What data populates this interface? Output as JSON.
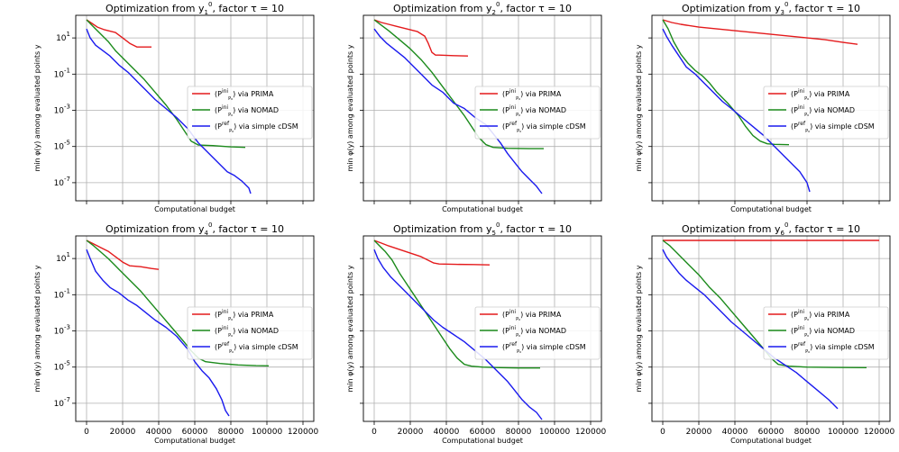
{
  "figure": {
    "layout": "2x3 grid"
  },
  "colors": {
    "prima": "#e41a1c",
    "nomad": "#1b8a1b",
    "cdsm": "#1a1aee",
    "grid": "#b0b0b0"
  },
  "chart_data": [
    {
      "type": "line",
      "title": "Optimization from y₁⁰, factor τ = 10",
      "xlabel": "Computational budget",
      "ylabel": "min φ(y) among evaluated points y",
      "y_scale": "log",
      "xlim": [
        -6000,
        126000
      ],
      "ylim_log10": [
        -8,
        2.25
      ],
      "x_ticks": [
        0,
        20000,
        40000,
        60000,
        80000,
        100000,
        120000
      ],
      "x_tick_labels_visible": false,
      "y_ticks": [
        "10^1",
        "10^-1",
        "10^-3",
        "10^-5",
        "10^-7"
      ],
      "y_tick_labels_visible": true,
      "grid": true,
      "legend": {
        "placement": "center-right",
        "entries": [
          "PRIMA",
          "NOMAD",
          "cDSM"
        ]
      },
      "series": [
        {
          "key": "prima",
          "name": "(P_P0^ini) via PRIMA",
          "x": [
            0,
            3000,
            6000,
            10000,
            16000,
            20000,
            24000,
            28000,
            36000
          ],
          "log10_y": [
            2.0,
            1.8,
            1.6,
            1.45,
            1.3,
            1.0,
            0.7,
            0.5,
            0.5
          ]
        },
        {
          "key": "nomad",
          "name": "(P_P0^ini) via NOMAD",
          "x": [
            0,
            4000,
            8000,
            12000,
            16000,
            20000,
            26000,
            32000,
            38000,
            44000,
            50000,
            54000,
            58000,
            62000,
            70000,
            80000,
            88000
          ],
          "log10_y": [
            2.0,
            1.6,
            1.2,
            0.8,
            0.3,
            -0.1,
            -0.7,
            -1.3,
            -2.0,
            -2.7,
            -3.5,
            -4.1,
            -4.7,
            -4.92,
            -4.95,
            -5.02,
            -5.05
          ]
        },
        {
          "key": "cdsm",
          "name": "(P_P0^ref) via simple cDSM",
          "x": [
            0,
            2000,
            5000,
            9000,
            13000,
            18000,
            23000,
            28000,
            33000,
            38000,
            44000,
            50000,
            56000,
            62000,
            66000,
            70000,
            74000,
            78000,
            82000,
            86000,
            90000,
            91000
          ],
          "log10_y": [
            1.5,
            1.0,
            0.6,
            0.3,
            0.0,
            -0.5,
            -0.9,
            -1.4,
            -1.9,
            -2.4,
            -2.9,
            -3.4,
            -4.0,
            -4.8,
            -5.2,
            -5.6,
            -6.0,
            -6.4,
            -6.6,
            -6.9,
            -7.3,
            -7.6
          ]
        }
      ]
    },
    {
      "type": "line",
      "title": "Optimization from y₂⁰, factor τ = 10",
      "xlabel": "Computational budget",
      "ylabel": "min φ(y) among evaluated points y",
      "y_scale": "log",
      "xlim": [
        -6000,
        126000
      ],
      "ylim_log10": [
        -8,
        2.25
      ],
      "x_ticks": [
        0,
        20000,
        40000,
        60000,
        80000,
        100000,
        120000
      ],
      "x_tick_labels_visible": false,
      "y_ticks": [
        "10^1",
        "10^-1",
        "10^-3",
        "10^-5",
        "10^-7"
      ],
      "y_tick_labels_visible": false,
      "grid": true,
      "legend": {
        "placement": "center-right",
        "entries": [
          "PRIMA",
          "NOMAD",
          "cDSM"
        ]
      },
      "series": [
        {
          "key": "prima",
          "name": "(P_P0^ini) via PRIMA",
          "x": [
            0,
            4000,
            8000,
            12000,
            16000,
            20000,
            24000,
            28000,
            30000,
            32000,
            34000,
            36000,
            44000,
            52000
          ],
          "log10_y": [
            2.0,
            1.85,
            1.75,
            1.65,
            1.55,
            1.45,
            1.35,
            1.1,
            0.7,
            0.2,
            0.05,
            0.05,
            0.02,
            0.0
          ]
        },
        {
          "key": "nomad",
          "name": "(P_P0^ini) via NOMAD",
          "x": [
            0,
            4000,
            8000,
            14000,
            20000,
            26000,
            32000,
            38000,
            44000,
            50000,
            54000,
            58000,
            62000,
            66000,
            74000,
            86000,
            94000
          ],
          "log10_y": [
            2.0,
            1.7,
            1.4,
            0.9,
            0.4,
            -0.2,
            -0.9,
            -1.7,
            -2.5,
            -3.3,
            -3.9,
            -4.5,
            -4.9,
            -5.05,
            -5.1,
            -5.12,
            -5.12
          ]
        },
        {
          "key": "cdsm",
          "name": "(P_P0^ref) via simple cDSM",
          "x": [
            0,
            3000,
            7000,
            12000,
            17000,
            22000,
            27000,
            32000,
            38000,
            44000,
            50000,
            56000,
            62000,
            66000,
            70000,
            74000,
            78000,
            82000,
            86000,
            90000,
            93000
          ],
          "log10_y": [
            1.5,
            1.1,
            0.7,
            0.3,
            -0.1,
            -0.6,
            -1.1,
            -1.6,
            -2.0,
            -2.6,
            -2.9,
            -3.4,
            -3.8,
            -4.3,
            -4.8,
            -5.4,
            -5.9,
            -6.4,
            -6.8,
            -7.2,
            -7.6
          ]
        }
      ]
    },
    {
      "type": "line",
      "title": "Optimization from y₃⁰, factor τ = 10",
      "xlabel": "Computational budget",
      "ylabel": "min φ(y) among evaluated points y",
      "y_scale": "log",
      "xlim": [
        -6000,
        126000
      ],
      "ylim_log10": [
        -8,
        2.25
      ],
      "x_ticks": [
        0,
        20000,
        40000,
        60000,
        80000,
        100000,
        120000
      ],
      "x_tick_labels_visible": false,
      "y_ticks": [
        "10^1",
        "10^-1",
        "10^-3",
        "10^-5",
        "10^-7"
      ],
      "y_tick_labels_visible": false,
      "grid": true,
      "legend": {
        "placement": "center-right",
        "entries": [
          "PRIMA",
          "NOMAD",
          "cDSM"
        ]
      },
      "series": [
        {
          "key": "prima",
          "name": "(P_P0^ini) via PRIMA",
          "x": [
            0,
            5000,
            10000,
            20000,
            30000,
            40000,
            50000,
            60000,
            70000,
            80000,
            90000,
            100000,
            108000
          ],
          "log10_y": [
            2.0,
            1.85,
            1.75,
            1.6,
            1.5,
            1.4,
            1.3,
            1.2,
            1.1,
            1.0,
            0.9,
            0.75,
            0.65
          ]
        },
        {
          "key": "nomad",
          "name": "(P_P0^ini) via NOMAD",
          "x": [
            0,
            3000,
            6000,
            10000,
            14000,
            18000,
            22000,
            26000,
            30000,
            36000,
            42000,
            46000,
            50000,
            54000,
            58000,
            62000,
            70000
          ],
          "log10_y": [
            2.0,
            1.5,
            0.8,
            0.1,
            -0.4,
            -0.8,
            -1.1,
            -1.5,
            -2.0,
            -2.6,
            -3.3,
            -3.9,
            -4.4,
            -4.7,
            -4.85,
            -4.88,
            -4.9
          ]
        },
        {
          "key": "cdsm",
          "name": "(P_P0^ref) via simple cDSM",
          "x": [
            0,
            2000,
            5000,
            9000,
            13000,
            18000,
            23000,
            28000,
            33000,
            38000,
            44000,
            50000,
            56000,
            60000,
            64000,
            68000,
            72000,
            76000,
            80000,
            81500
          ],
          "log10_y": [
            1.5,
            1.1,
            0.6,
            0.0,
            -0.6,
            -1.0,
            -1.5,
            -2.0,
            -2.5,
            -2.9,
            -3.4,
            -3.9,
            -4.4,
            -4.8,
            -5.2,
            -5.6,
            -6.0,
            -6.4,
            -7.0,
            -7.5
          ]
        }
      ]
    },
    {
      "type": "line",
      "title": "Optimization from y₄⁰, factor τ = 10",
      "xlabel": "Computational budget",
      "ylabel": "min φ(y) among evaluated points y",
      "y_scale": "log",
      "xlim": [
        -6000,
        126000
      ],
      "ylim_log10": [
        -8,
        2.25
      ],
      "x_ticks": [
        0,
        20000,
        40000,
        60000,
        80000,
        100000,
        120000
      ],
      "x_tick_labels_visible": true,
      "y_ticks": [
        "10^1",
        "10^-1",
        "10^-3",
        "10^-5",
        "10^-7"
      ],
      "y_tick_labels_visible": true,
      "grid": true,
      "legend": {
        "placement": "center-right",
        "entries": [
          "PRIMA",
          "NOMAD",
          "cDSM"
        ]
      },
      "series": [
        {
          "key": "prima",
          "name": "(P_P0^ini) via PRIMA",
          "x": [
            0,
            4000,
            8000,
            12000,
            16000,
            20000,
            24000,
            30000,
            36000,
            40000
          ],
          "log10_y": [
            2.0,
            1.8,
            1.6,
            1.4,
            1.1,
            0.8,
            0.6,
            0.55,
            0.45,
            0.4
          ]
        },
        {
          "key": "nomad",
          "name": "(P_P0^ini) via NOMAD",
          "x": [
            0,
            4000,
            8000,
            12000,
            18000,
            24000,
            30000,
            36000,
            42000,
            48000,
            54000,
            58000,
            62000,
            66000,
            74000,
            84000,
            94000,
            101000
          ],
          "log10_y": [
            2.0,
            1.7,
            1.35,
            1.0,
            0.4,
            -0.2,
            -0.8,
            -1.5,
            -2.2,
            -2.9,
            -3.6,
            -4.1,
            -4.5,
            -4.7,
            -4.8,
            -4.88,
            -4.92,
            -4.93
          ]
        },
        {
          "key": "cdsm",
          "name": "(P_P0^ref) via simple cDSM",
          "x": [
            0,
            2000,
            5000,
            9000,
            13000,
            18000,
            23000,
            28000,
            33000,
            38000,
            44000,
            50000,
            56000,
            60000,
            64000,
            68000,
            72000,
            75000,
            77000,
            79000
          ],
          "log10_y": [
            1.5,
            1.0,
            0.3,
            -0.2,
            -0.6,
            -0.9,
            -1.3,
            -1.6,
            -2.0,
            -2.4,
            -2.8,
            -3.3,
            -4.0,
            -4.7,
            -5.2,
            -5.6,
            -6.2,
            -6.8,
            -7.4,
            -7.7
          ]
        }
      ]
    },
    {
      "type": "line",
      "title": "Optimization from y₅⁰, factor τ = 10",
      "xlabel": "Computational budget",
      "ylabel": "min φ(y) among evaluated points y",
      "y_scale": "log",
      "xlim": [
        -6000,
        126000
      ],
      "ylim_log10": [
        -8,
        2.25
      ],
      "x_ticks": [
        0,
        20000,
        40000,
        60000,
        80000,
        100000,
        120000
      ],
      "x_tick_labels_visible": true,
      "y_ticks": [
        "10^1",
        "10^-1",
        "10^-3",
        "10^-5",
        "10^-7"
      ],
      "y_tick_labels_visible": false,
      "grid": true,
      "legend": {
        "placement": "center-right",
        "entries": [
          "PRIMA",
          "NOMAD",
          "cDSM"
        ]
      },
      "series": [
        {
          "key": "prima",
          "name": "(P_P0^ini) via PRIMA",
          "x": [
            0,
            4000,
            8000,
            14000,
            20000,
            26000,
            30000,
            33000,
            36000,
            45000,
            55000,
            64000
          ],
          "log10_y": [
            2.0,
            1.85,
            1.7,
            1.5,
            1.3,
            1.1,
            0.9,
            0.75,
            0.7,
            0.68,
            0.67,
            0.65
          ]
        },
        {
          "key": "nomad",
          "name": "(P_P0^ini) via NOMAD",
          "x": [
            0,
            3000,
            6000,
            10000,
            14000,
            18000,
            22000,
            26000,
            30000,
            34000,
            38000,
            42000,
            46000,
            50000,
            54000,
            60000,
            70000,
            80000,
            92000
          ],
          "log10_y": [
            2.0,
            1.7,
            1.4,
            0.9,
            0.2,
            -0.4,
            -1.0,
            -1.6,
            -2.2,
            -2.8,
            -3.4,
            -4.0,
            -4.5,
            -4.85,
            -4.95,
            -5.0,
            -5.03,
            -5.05,
            -5.05
          ]
        },
        {
          "key": "cdsm",
          "name": "(P_P0^ref) via simple cDSM",
          "x": [
            0,
            2000,
            5000,
            9000,
            13000,
            18000,
            23000,
            28000,
            33000,
            38000,
            44000,
            50000,
            56000,
            62000,
            68000,
            74000,
            78000,
            82000,
            86000,
            90000,
            93000
          ],
          "log10_y": [
            1.5,
            1.0,
            0.5,
            0.0,
            -0.4,
            -0.9,
            -1.4,
            -1.9,
            -2.4,
            -2.8,
            -3.2,
            -3.6,
            -4.1,
            -4.6,
            -5.2,
            -5.8,
            -6.3,
            -6.8,
            -7.2,
            -7.5,
            -7.9
          ]
        }
      ]
    },
    {
      "type": "line",
      "title": "Optimization from y₆⁰, factor τ = 10",
      "xlabel": "Computational budget",
      "ylabel": "min φ(y) among evaluated points y",
      "y_scale": "log",
      "xlim": [
        -6000,
        126000
      ],
      "ylim_log10": [
        -8,
        2.25
      ],
      "x_ticks": [
        0,
        20000,
        40000,
        60000,
        80000,
        100000,
        120000
      ],
      "x_tick_labels_visible": true,
      "y_ticks": [
        "10^1",
        "10^-1",
        "10^-3",
        "10^-5",
        "10^-7"
      ],
      "y_tick_labels_visible": false,
      "grid": true,
      "legend": {
        "placement": "center-right",
        "entries": [
          "PRIMA",
          "NOMAD",
          "cDSM"
        ]
      },
      "series": [
        {
          "key": "prima",
          "name": "(P_P0^ini) via PRIMA",
          "x": [
            0,
            120000
          ],
          "log10_y": [
            2.0,
            2.0
          ]
        },
        {
          "key": "nomad",
          "name": "(P_P0^ini) via NOMAD",
          "x": [
            0,
            4000,
            8000,
            14000,
            20000,
            26000,
            32000,
            38000,
            44000,
            50000,
            56000,
            60000,
            64000,
            70000,
            80000,
            95000,
            113000
          ],
          "log10_y": [
            2.0,
            1.7,
            1.3,
            0.7,
            0.1,
            -0.6,
            -1.2,
            -1.9,
            -2.6,
            -3.3,
            -4.0,
            -4.5,
            -4.85,
            -4.95,
            -5.0,
            -5.02,
            -5.03
          ]
        },
        {
          "key": "cdsm",
          "name": "(P_P0^ref) via simple cDSM",
          "x": [
            0,
            2000,
            5000,
            9000,
            13000,
            18000,
            23000,
            28000,
            33000,
            38000,
            44000,
            50000,
            56000,
            62000,
            68000,
            74000,
            80000,
            86000,
            92000,
            97000
          ],
          "log10_y": [
            1.5,
            1.1,
            0.7,
            0.2,
            -0.2,
            -0.6,
            -1.0,
            -1.5,
            -2.0,
            -2.5,
            -3.0,
            -3.5,
            -4.0,
            -4.5,
            -4.9,
            -5.3,
            -5.8,
            -6.3,
            -6.8,
            -7.3
          ]
        }
      ]
    }
  ]
}
